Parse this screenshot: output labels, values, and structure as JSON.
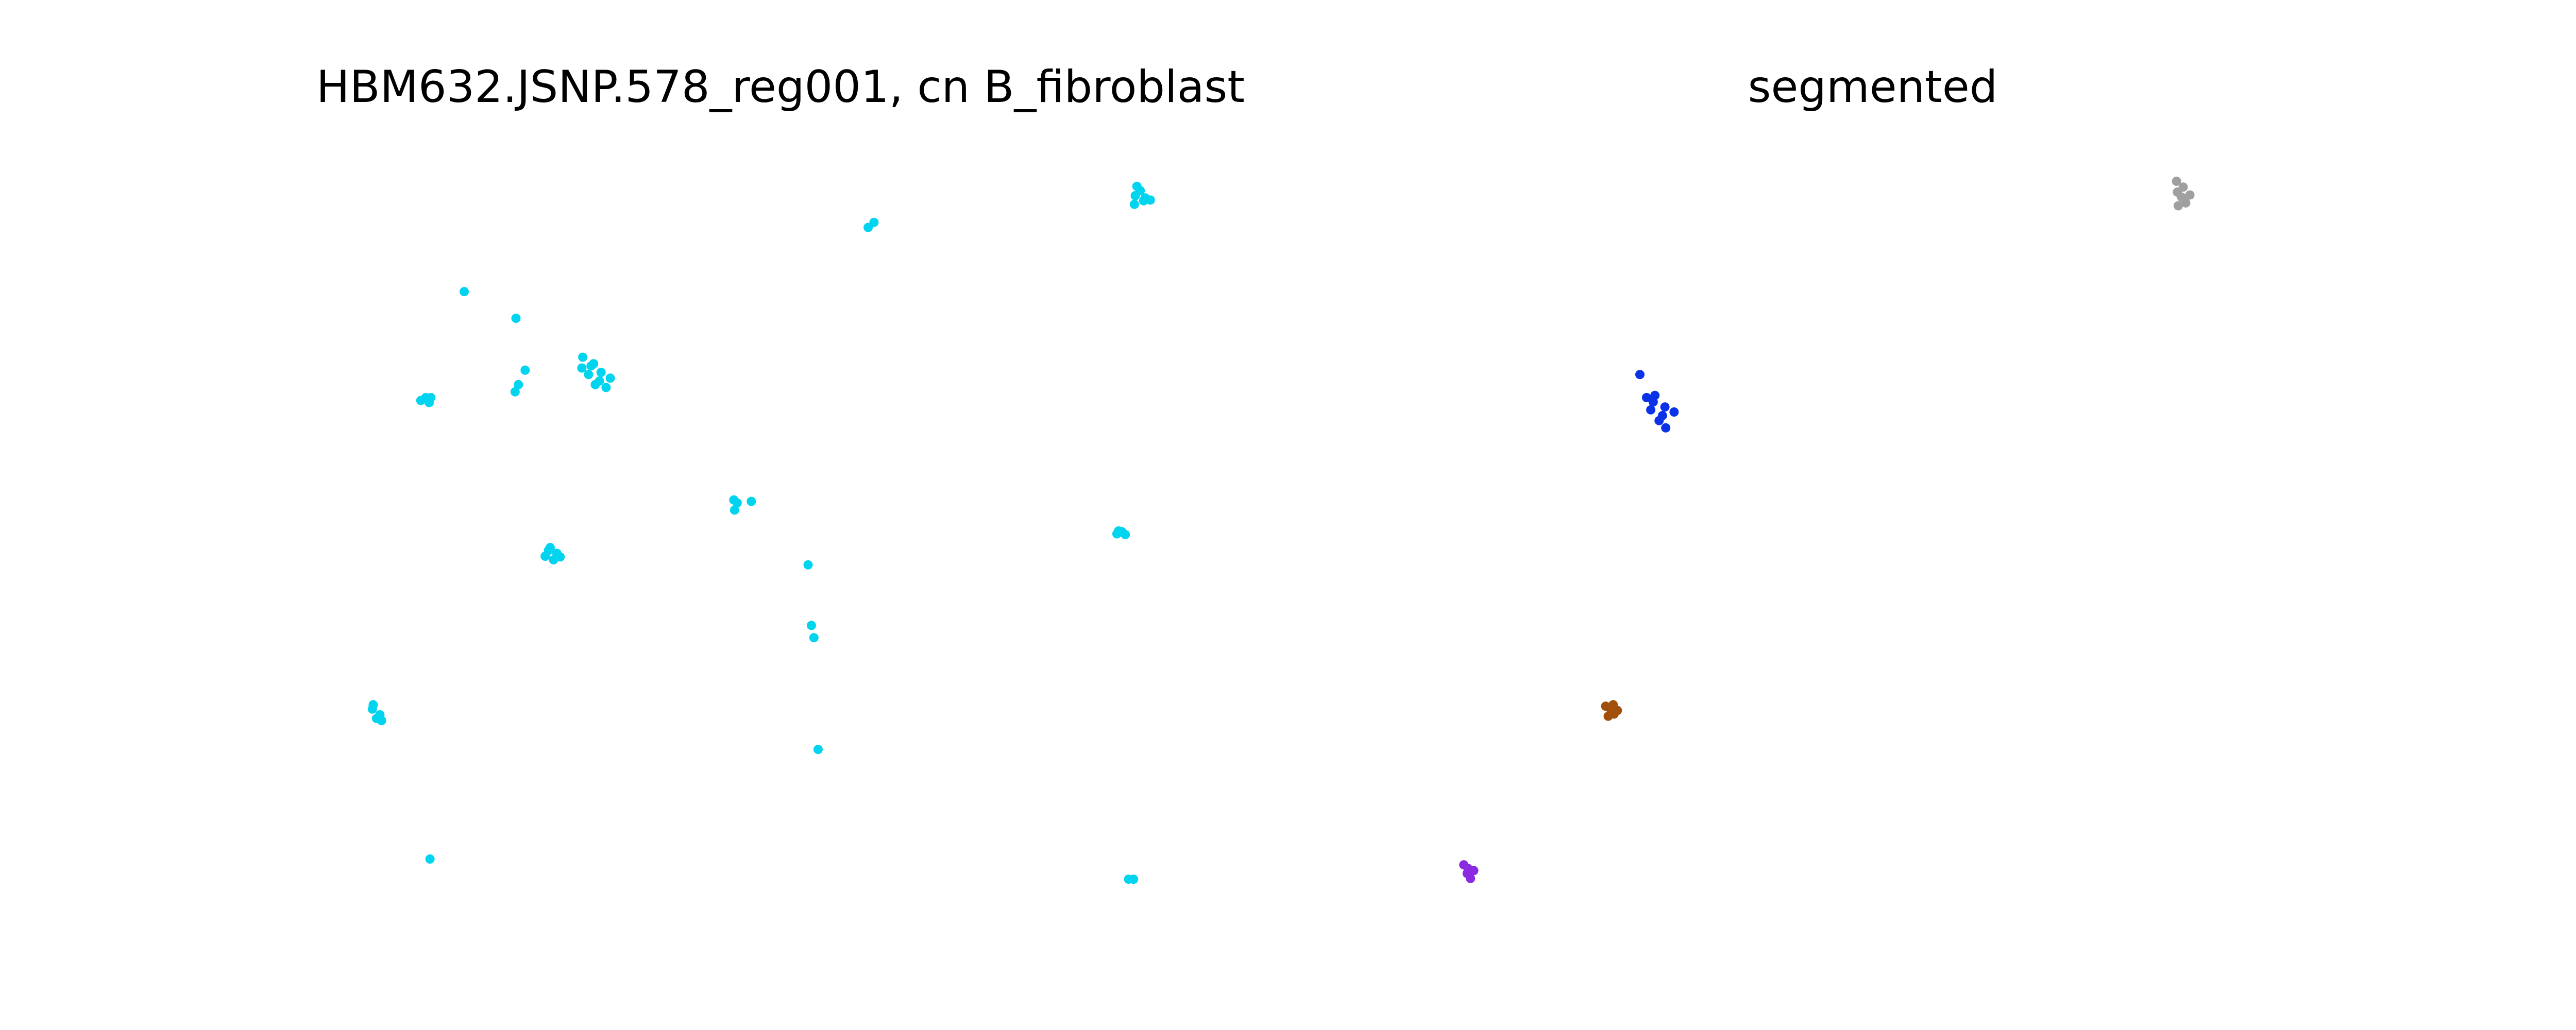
{
  "chart_data": [
    {
      "type": "scatter",
      "title": "HBM632.JSNP.578_reg001, cn B_fibroblast",
      "xlabel": "",
      "ylabel": "",
      "axes_visible": false,
      "grid": false,
      "xlim": [
        0,
        1000
      ],
      "ylim": [
        1000,
        0
      ],
      "series": [
        {
          "color": "#00d4ee",
          "points": [
            [
              80,
              30
            ],
            [
              917,
              2
            ],
            [
              923,
              2
            ],
            [
              545,
              182
            ],
            [
              11,
              238
            ],
            [
              16,
              225
            ],
            [
              20,
              230
            ],
            [
              22,
              222
            ],
            [
              12,
              244
            ],
            [
              540,
              337
            ],
            [
              537,
              354
            ],
            [
              533,
              438
            ],
            [
              218,
              450
            ],
            [
              228,
              445
            ],
            [
              222,
              458
            ],
            [
              232,
              454
            ],
            [
              236,
              449
            ],
            [
              224,
              462
            ],
            [
              903,
              481
            ],
            [
              909,
              484
            ],
            [
              913,
              480
            ],
            [
              905,
              485
            ],
            [
              445,
              514
            ],
            [
              448,
              524
            ],
            [
              465,
              526
            ],
            [
              444,
              528
            ],
            [
              69,
              666
            ],
            [
              79,
              663
            ],
            [
              81,
              670
            ],
            [
              75,
              670
            ],
            [
              182,
              678
            ],
            [
              186,
              688
            ],
            [
              194,
              708
            ],
            [
              278,
              688
            ],
            [
              291,
              684
            ],
            [
              283,
              693
            ],
            [
              296,
              697
            ],
            [
              270,
              702
            ],
            [
              285,
              705
            ],
            [
              262,
              711
            ],
            [
              273,
              714
            ],
            [
              263,
              726
            ],
            [
              276,
              717
            ],
            [
              183,
              780
            ],
            [
              121,
              817
            ],
            [
              605,
              906
            ],
            [
              612,
              913
            ],
            [
              924,
              938
            ],
            [
              935,
              943
            ],
            [
              943,
              944
            ],
            [
              925,
              950
            ],
            [
              931,
              957
            ],
            [
              937,
              947
            ],
            [
              927,
              963
            ]
          ]
        }
      ]
    },
    {
      "type": "scatter",
      "title": "segmented",
      "xlabel": "",
      "ylabel": "",
      "axes_visible": false,
      "grid": false,
      "xlim": [
        0,
        1000
      ],
      "ylim": [
        1000,
        0
      ],
      "series": [
        {
          "color": "#8a2be2",
          "points": [
            [
              18,
              3
            ],
            [
              14,
              10
            ],
            [
              22,
              14
            ],
            [
              10,
              22
            ],
            [
              15,
              17
            ]
          ]
        },
        {
          "color": "#a0500a",
          "points": [
            [
              183,
              228
            ],
            [
              190,
              231
            ],
            [
              186,
              238
            ],
            [
              194,
              236
            ],
            [
              180,
              242
            ],
            [
              189,
              244
            ]
          ]
        },
        {
          "color": "#0a32e6",
          "points": [
            [
              244,
              638
            ],
            [
              252,
              628
            ],
            [
              234,
              653
            ],
            [
              251,
              657
            ],
            [
              229,
              670
            ],
            [
              239,
              673
            ],
            [
              221,
              702
            ],
            [
              262,
              650
            ],
            [
              248,
              645
            ],
            [
              237,
              664
            ]
          ]
        },
        {
          "color": "#a0a0a0",
          "points": [
            [
              866,
              936
            ],
            [
              875,
              940
            ],
            [
              870,
              948
            ],
            [
              880,
              951
            ],
            [
              865,
              955
            ],
            [
              872,
              962
            ],
            [
              864,
              970
            ]
          ]
        }
      ]
    }
  ]
}
